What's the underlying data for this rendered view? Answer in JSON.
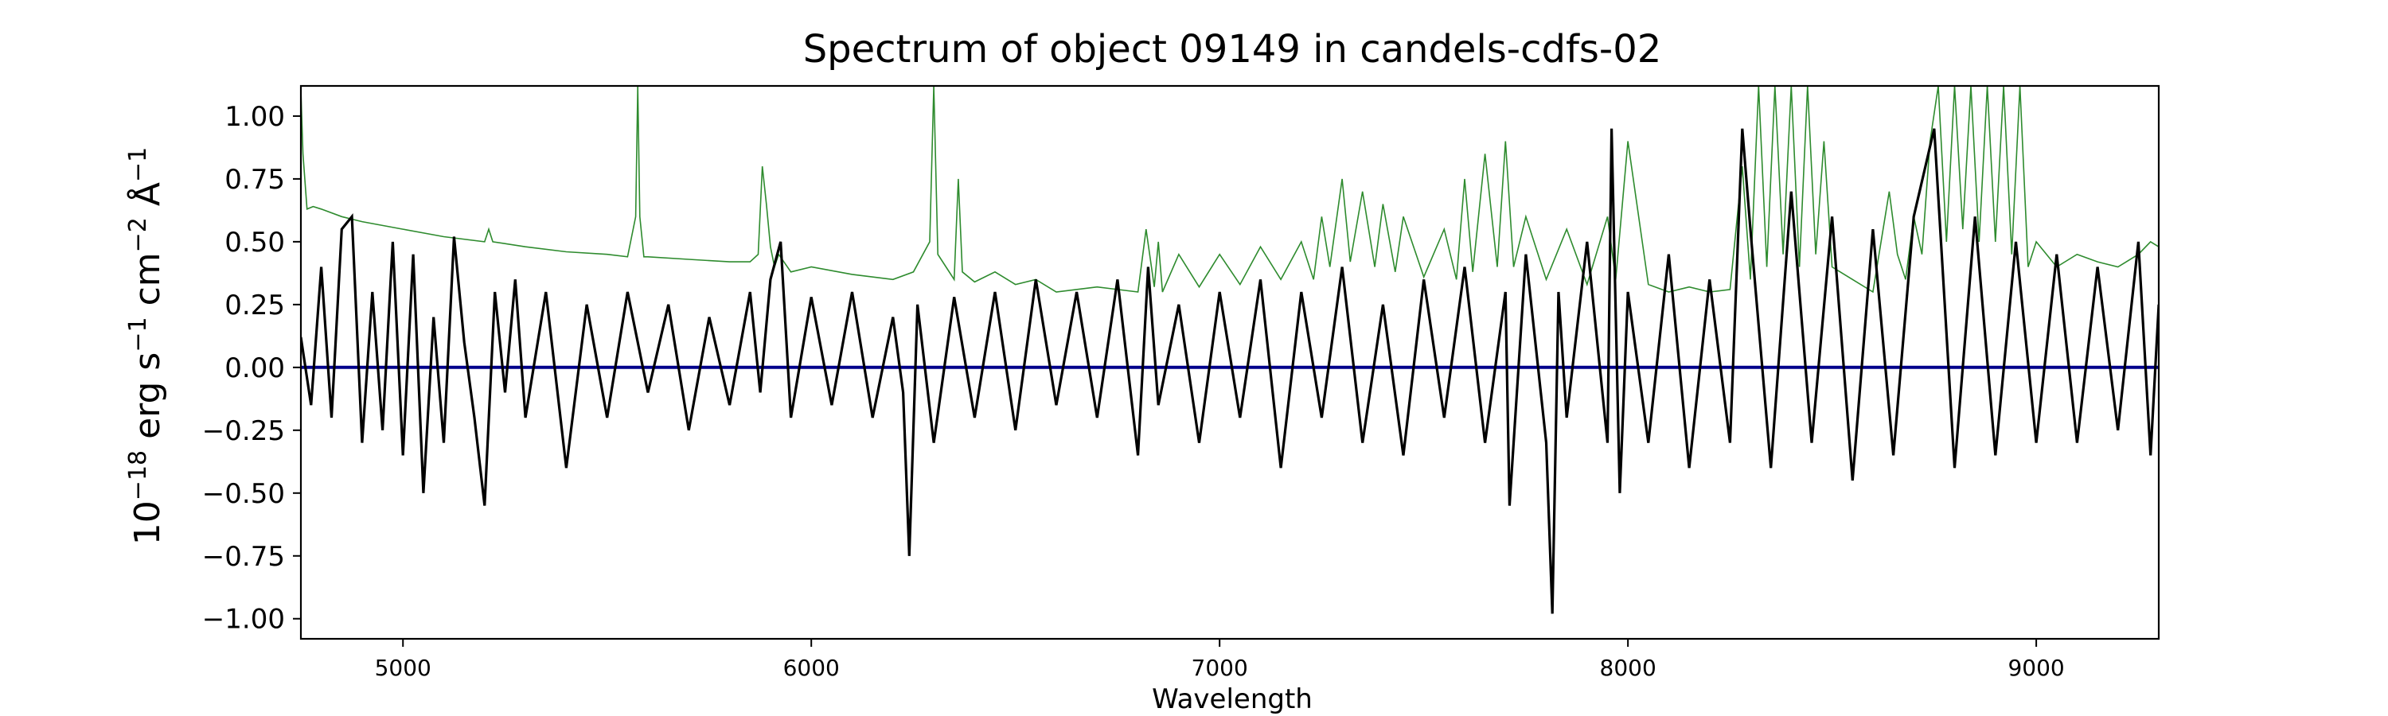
{
  "chart_data": {
    "type": "line",
    "title": "Spectrum of object 09149 in candels-cdfs-02",
    "xlabel": "Wavelength",
    "ylabel_base": "10",
    "ylabel_exp": "−18",
    "ylabel_t1": " erg s",
    "ylabel_e1": "−1",
    "ylabel_t2": " cm",
    "ylabel_e2": "−2",
    "ylabel_t3": " Å",
    "ylabel_e3": "−1",
    "xlim": [
      4750,
      9300
    ],
    "ylim": [
      -1.08,
      1.12
    ],
    "xticks": [
      5000,
      6000,
      7000,
      8000,
      9000
    ],
    "xtick_labels": [
      "5000",
      "6000",
      "7000",
      "8000",
      "9000"
    ],
    "yticks": [
      1.0,
      0.75,
      0.5,
      0.25,
      0.0,
      -0.25,
      -0.5,
      -0.75,
      -1.0
    ],
    "ytick_labels": [
      "1.00",
      "0.75",
      "0.50",
      "0.25",
      "0.00",
      "−0.25",
      "−0.50",
      "−0.75",
      "−1.00"
    ],
    "grid": false,
    "colors": {
      "flux": "#000000",
      "error": "#2e8b2e",
      "zero": "#00008b"
    },
    "series": [
      {
        "key": "flux",
        "x": [
          4750,
          4775,
          4800,
          4825,
          4850,
          4875,
          4900,
          4925,
          4950,
          4975,
          5000,
          5025,
          5050,
          5075,
          5100,
          5125,
          5150,
          5175,
          5200,
          5225,
          5250,
          5275,
          5300,
          5350,
          5400,
          5450,
          5500,
          5550,
          5600,
          5650,
          5700,
          5750,
          5800,
          5850,
          5875,
          5900,
          5925,
          5950,
          6000,
          6050,
          6100,
          6150,
          6200,
          6225,
          6240,
          6260,
          6300,
          6350,
          6400,
          6450,
          6500,
          6550,
          6600,
          6650,
          6700,
          6750,
          6800,
          6825,
          6850,
          6900,
          6950,
          7000,
          7050,
          7100,
          7150,
          7200,
          7250,
          7300,
          7350,
          7400,
          7450,
          7500,
          7550,
          7600,
          7650,
          7700,
          7710,
          7750,
          7800,
          7815,
          7830,
          7850,
          7900,
          7950,
          7960,
          7980,
          8000,
          8050,
          8100,
          8150,
          8200,
          8250,
          8280,
          8300,
          8350,
          8400,
          8450,
          8500,
          8550,
          8600,
          8650,
          8700,
          8750,
          8800,
          8850,
          8900,
          8950,
          9000,
          9050,
          9100,
          9150,
          9200,
          9250,
          9280,
          9300
        ],
        "y": [
          0.12,
          -0.15,
          0.4,
          -0.2,
          0.55,
          0.6,
          -0.3,
          0.3,
          -0.25,
          0.5,
          -0.35,
          0.45,
          -0.5,
          0.2,
          -0.3,
          0.52,
          0.1,
          -0.2,
          -0.55,
          0.3,
          -0.1,
          0.35,
          -0.2,
          0.3,
          -0.4,
          0.25,
          -0.2,
          0.3,
          -0.1,
          0.25,
          -0.25,
          0.2,
          -0.15,
          0.3,
          -0.1,
          0.35,
          0.5,
          -0.2,
          0.28,
          -0.15,
          0.3,
          -0.2,
          0.2,
          -0.1,
          -0.75,
          0.25,
          -0.3,
          0.28,
          -0.2,
          0.3,
          -0.25,
          0.35,
          -0.15,
          0.3,
          -0.2,
          0.35,
          -0.35,
          0.4,
          -0.15,
          0.25,
          -0.3,
          0.3,
          -0.2,
          0.35,
          -0.4,
          0.3,
          -0.2,
          0.4,
          -0.3,
          0.25,
          -0.35,
          0.35,
          -0.2,
          0.4,
          -0.3,
          0.3,
          -0.55,
          0.45,
          -0.3,
          -0.98,
          0.3,
          -0.2,
          0.5,
          -0.3,
          0.95,
          -0.5,
          0.3,
          -0.3,
          0.45,
          -0.4,
          0.35,
          -0.3,
          0.95,
          0.55,
          -0.4,
          0.7,
          -0.3,
          0.6,
          -0.45,
          0.55,
          -0.35,
          0.6,
          0.95,
          -0.4,
          0.6,
          -0.35,
          0.5,
          -0.3,
          0.45,
          -0.3,
          0.4,
          -0.25,
          0.5,
          -0.35,
          0.25
        ]
      },
      {
        "key": "error",
        "x": [
          4750,
          4755,
          4765,
          4780,
          4800,
          4850,
          4900,
          5000,
          5100,
          5200,
          5210,
          5220,
          5300,
          5400,
          5500,
          5550,
          5570,
          5575,
          5580,
          5590,
          5600,
          5700,
          5800,
          5850,
          5870,
          5880,
          5890,
          5900,
          5910,
          5920,
          5950,
          6000,
          6100,
          6200,
          6250,
          6290,
          6300,
          6310,
          6350,
          6360,
          6370,
          6400,
          6450,
          6500,
          6550,
          6600,
          6700,
          6800,
          6820,
          6840,
          6850,
          6860,
          6900,
          6950,
          7000,
          7050,
          7100,
          7150,
          7200,
          7230,
          7250,
          7270,
          7300,
          7320,
          7350,
          7380,
          7400,
          7430,
          7450,
          7500,
          7550,
          7580,
          7600,
          7620,
          7650,
          7680,
          7700,
          7720,
          7750,
          7800,
          7850,
          7900,
          7950,
          7970,
          8000,
          8050,
          8100,
          8150,
          8200,
          8250,
          8280,
          8300,
          8320,
          8340,
          8360,
          8380,
          8400,
          8420,
          8440,
          8460,
          8480,
          8500,
          8550,
          8600,
          8640,
          8660,
          8680,
          8700,
          8720,
          8740,
          8760,
          8780,
          8800,
          8820,
          8840,
          8860,
          8880,
          8900,
          8920,
          8940,
          8960,
          8980,
          9000,
          9050,
          9100,
          9150,
          9200,
          9250,
          9280,
          9300
        ],
        "y": [
          1.1,
          0.85,
          0.63,
          0.64,
          0.63,
          0.6,
          0.58,
          0.55,
          0.52,
          0.5,
          0.55,
          0.5,
          0.48,
          0.46,
          0.45,
          0.44,
          0.6,
          1.12,
          0.6,
          0.44,
          0.44,
          0.43,
          0.42,
          0.42,
          0.45,
          0.8,
          0.65,
          0.48,
          0.4,
          0.45,
          0.38,
          0.4,
          0.37,
          0.35,
          0.38,
          0.5,
          1.12,
          0.45,
          0.35,
          0.75,
          0.38,
          0.34,
          0.38,
          0.33,
          0.35,
          0.3,
          0.32,
          0.3,
          0.55,
          0.32,
          0.5,
          0.3,
          0.45,
          0.32,
          0.45,
          0.33,
          0.48,
          0.35,
          0.5,
          0.35,
          0.6,
          0.4,
          0.75,
          0.42,
          0.7,
          0.4,
          0.65,
          0.38,
          0.6,
          0.36,
          0.55,
          0.35,
          0.75,
          0.38,
          0.85,
          0.4,
          0.9,
          0.4,
          0.6,
          0.35,
          0.55,
          0.33,
          0.6,
          0.35,
          0.9,
          0.33,
          0.3,
          0.32,
          0.3,
          0.31,
          0.8,
          0.35,
          1.12,
          0.4,
          1.12,
          0.45,
          1.12,
          0.4,
          1.12,
          0.45,
          0.9,
          0.4,
          0.35,
          0.3,
          0.7,
          0.45,
          0.35,
          0.6,
          0.45,
          0.9,
          1.12,
          0.5,
          1.12,
          0.55,
          1.12,
          0.5,
          1.12,
          0.5,
          1.12,
          0.45,
          1.12,
          0.4,
          0.5,
          0.4,
          0.45,
          0.42,
          0.4,
          0.45,
          0.5,
          0.48
        ]
      },
      {
        "key": "zero",
        "x": [
          4750,
          9300
        ],
        "y": [
          0,
          0
        ]
      }
    ]
  }
}
